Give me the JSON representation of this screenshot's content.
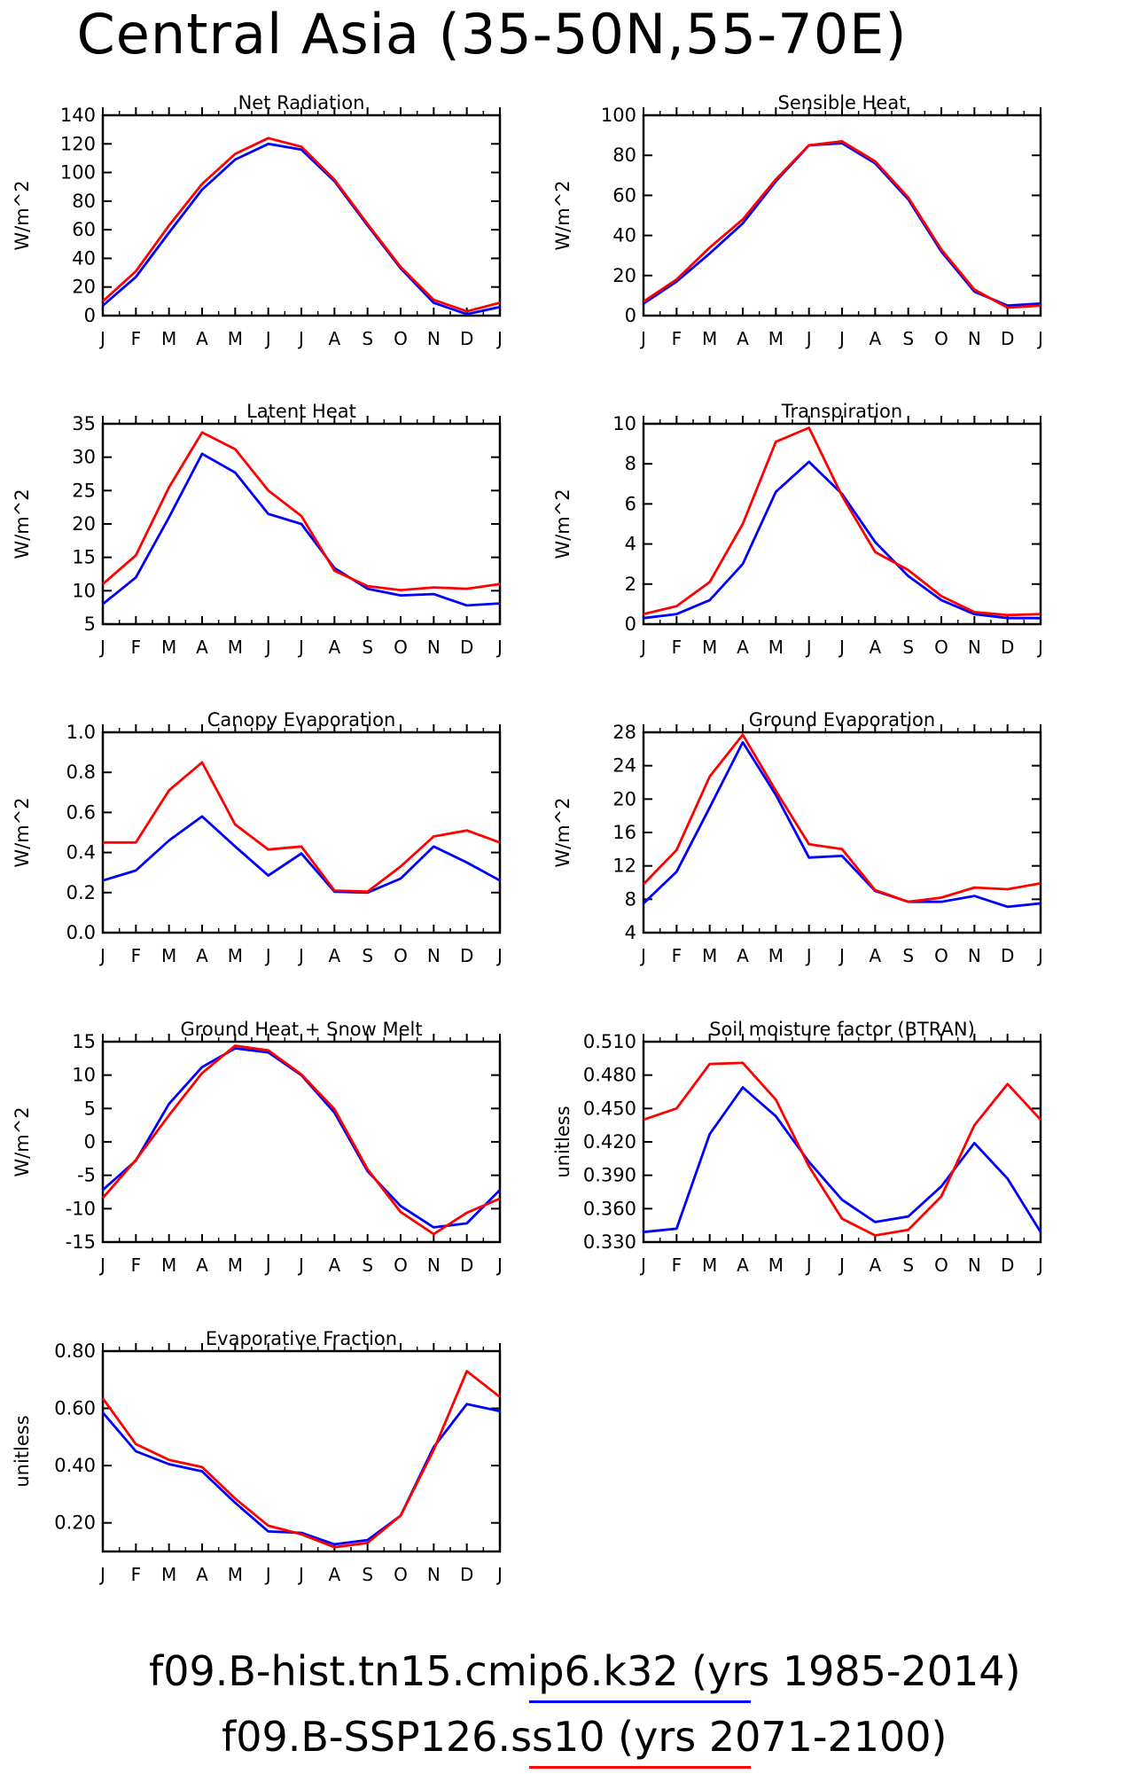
{
  "title": "Central Asia (35-50N,55-70E)",
  "months": [
    "J",
    "F",
    "M",
    "A",
    "M",
    "J",
    "J",
    "A",
    "S",
    "O",
    "N",
    "D",
    "J"
  ],
  "colors": {
    "hist": "#0000ff",
    "ssp": "#ff0000"
  },
  "legend": [
    {
      "text": "f09.B-hist.tn15.cmip6.k32 (yrs 1985-2014)",
      "color": "#0000ff",
      "series": "hist"
    },
    {
      "text": "f09.B-SSP126.ss10 (yrs 2071-2100)",
      "color": "#ff0000",
      "series": "ssp"
    }
  ],
  "chart_data": [
    {
      "type": "line",
      "title": "Net Radiation",
      "ylabel": "W/m^2",
      "ylim": [
        0,
        140
      ],
      "yticks": [
        0,
        20,
        40,
        60,
        80,
        100,
        120,
        140
      ],
      "ytick_labels": [
        "0",
        "20",
        "40",
        "60",
        "80",
        "100",
        "120",
        "140"
      ],
      "series": [
        {
          "key": "hist",
          "values": [
            7,
            27,
            58,
            88,
            109,
            120,
            116,
            94,
            63,
            33,
            9,
            1,
            6
          ]
        },
        {
          "key": "ssp",
          "values": [
            10,
            31,
            63,
            92,
            113,
            124,
            118,
            95,
            64,
            34,
            11,
            3,
            9
          ]
        }
      ]
    },
    {
      "type": "line",
      "title": "Sensible Heat",
      "ylabel": "W/m^2",
      "ylim": [
        0,
        100
      ],
      "yticks": [
        0,
        20,
        40,
        60,
        80,
        100
      ],
      "ytick_labels": [
        "0",
        "20",
        "40",
        "60",
        "80",
        "100"
      ],
      "series": [
        {
          "key": "hist",
          "values": [
            6,
            17,
            31,
            46,
            67,
            85,
            86,
            76,
            58,
            32,
            12,
            5,
            6
          ]
        },
        {
          "key": "ssp",
          "values": [
            7,
            18,
            34,
            48,
            68,
            85,
            87,
            77,
            59,
            33,
            13,
            4,
            5
          ]
        }
      ]
    },
    {
      "type": "line",
      "title": "Latent Heat",
      "ylabel": "W/m^2",
      "ylim": [
        5,
        35
      ],
      "yticks": [
        5,
        10,
        15,
        20,
        25,
        30,
        35
      ],
      "ytick_labels": [
        "5",
        "10",
        "15",
        "20",
        "25",
        "30",
        "35"
      ],
      "series": [
        {
          "key": "hist",
          "values": [
            8,
            12,
            21,
            30.5,
            27.7,
            21.5,
            20,
            13.4,
            10.3,
            9.3,
            9.5,
            7.8,
            8.1
          ]
        },
        {
          "key": "ssp",
          "values": [
            11,
            15.3,
            25.5,
            33.7,
            31.2,
            25,
            21.2,
            13,
            10.7,
            10.1,
            10.5,
            10.3,
            11
          ]
        }
      ]
    },
    {
      "type": "line",
      "title": "Transpiration",
      "ylabel": "W/m^2",
      "ylim": [
        0,
        10
      ],
      "yticks": [
        0,
        2,
        4,
        6,
        8,
        10
      ],
      "ytick_labels": [
        "0",
        "2",
        "4",
        "6",
        "8",
        "10"
      ],
      "series": [
        {
          "key": "hist",
          "values": [
            0.3,
            0.5,
            1.2,
            3,
            6.6,
            8.1,
            6.5,
            4.1,
            2.4,
            1.2,
            0.5,
            0.3,
            0.3
          ]
        },
        {
          "key": "ssp",
          "values": [
            0.5,
            0.9,
            2.1,
            5,
            9.1,
            9.8,
            6.4,
            3.6,
            2.7,
            1.4,
            0.6,
            0.45,
            0.5
          ]
        }
      ]
    },
    {
      "type": "line",
      "title": "Canopy Evaporation",
      "ylabel": "W/m^2",
      "ylim": [
        0,
        1
      ],
      "yticks": [
        0,
        0.2,
        0.4,
        0.6,
        0.8,
        1.0
      ],
      "ytick_labels": [
        "0.0",
        "0.2",
        "0.4",
        "0.6",
        "0.8",
        "1.0"
      ],
      "series": [
        {
          "key": "hist",
          "values": [
            0.26,
            0.31,
            0.46,
            0.58,
            0.43,
            0.285,
            0.395,
            0.205,
            0.2,
            0.27,
            0.43,
            0.35,
            0.26
          ]
        },
        {
          "key": "ssp",
          "values": [
            0.45,
            0.45,
            0.71,
            0.85,
            0.54,
            0.415,
            0.43,
            0.21,
            0.205,
            0.33,
            0.48,
            0.51,
            0.45
          ]
        }
      ]
    },
    {
      "type": "line",
      "title": "Ground Evaporation",
      "ylabel": "W/m^2",
      "ylim": [
        4,
        28
      ],
      "yticks": [
        4,
        8,
        12,
        16,
        20,
        24,
        28
      ],
      "ytick_labels": [
        "4",
        "8",
        "12",
        "16",
        "20",
        "24",
        "28"
      ],
      "series": [
        {
          "key": "hist",
          "values": [
            7.5,
            11.3,
            19,
            26.8,
            20.5,
            13,
            13.2,
            9,
            7.7,
            7.7,
            8.4,
            7.1,
            7.5
          ]
        },
        {
          "key": "ssp",
          "values": [
            9.8,
            13.9,
            22.7,
            27.7,
            21,
            14.6,
            14,
            9.1,
            7.7,
            8.2,
            9.4,
            9.2,
            9.9
          ]
        }
      ]
    },
    {
      "type": "line",
      "title": "Ground Heat + Snow Melt",
      "ylabel": "W/m^2",
      "ylim": [
        -15,
        15
      ],
      "yticks": [
        -15,
        -10,
        -5,
        0,
        5,
        10,
        15
      ],
      "ytick_labels": [
        "-15",
        "-10",
        "-5",
        "0",
        "5",
        "10",
        "15"
      ],
      "series": [
        {
          "key": "hist",
          "values": [
            -7.2,
            -2.8,
            5.7,
            11.2,
            14,
            13.4,
            10,
            4.4,
            -4.4,
            -9.6,
            -12.8,
            -12.2,
            -7.2
          ]
        },
        {
          "key": "ssp",
          "values": [
            -8.4,
            -2.7,
            4,
            10.3,
            14.4,
            13.7,
            10.1,
            4.9,
            -4.1,
            -10.5,
            -13.8,
            -10.6,
            -8.5
          ]
        }
      ]
    },
    {
      "type": "line",
      "title": "Soil moisture factor (BTRAN)",
      "ylabel": "unitless",
      "ylim": [
        0.33,
        0.51
      ],
      "yticks": [
        0.33,
        0.36,
        0.39,
        0.42,
        0.45,
        0.48,
        0.51
      ],
      "ytick_labels": [
        "0.330",
        "0.360",
        "0.390",
        "0.420",
        "0.450",
        "0.480",
        "0.510"
      ],
      "series": [
        {
          "key": "hist",
          "values": [
            0.339,
            0.342,
            0.427,
            0.469,
            0.443,
            0.402,
            0.368,
            0.348,
            0.353,
            0.38,
            0.419,
            0.387,
            0.339
          ]
        },
        {
          "key": "ssp",
          "values": [
            0.44,
            0.45,
            0.49,
            0.491,
            0.458,
            0.398,
            0.351,
            0.336,
            0.341,
            0.371,
            0.435,
            0.472,
            0.44
          ]
        }
      ]
    },
    {
      "type": "line",
      "title": "Evaporative Fraction",
      "ylabel": "unitless",
      "ylim": [
        0.1,
        0.8
      ],
      "yticks": [
        0.2,
        0.4,
        0.6,
        0.8
      ],
      "ytick_labels": [
        "0.20",
        "0.40",
        "0.60",
        "0.80"
      ],
      "series": [
        {
          "key": "hist",
          "values": [
            0.585,
            0.45,
            0.405,
            0.38,
            0.27,
            0.17,
            0.165,
            0.125,
            0.14,
            0.225,
            0.465,
            0.615,
            0.59
          ]
        },
        {
          "key": "ssp",
          "values": [
            0.635,
            0.475,
            0.42,
            0.395,
            0.285,
            0.19,
            0.16,
            0.115,
            0.13,
            0.225,
            0.455,
            0.73,
            0.64
          ]
        }
      ]
    }
  ]
}
